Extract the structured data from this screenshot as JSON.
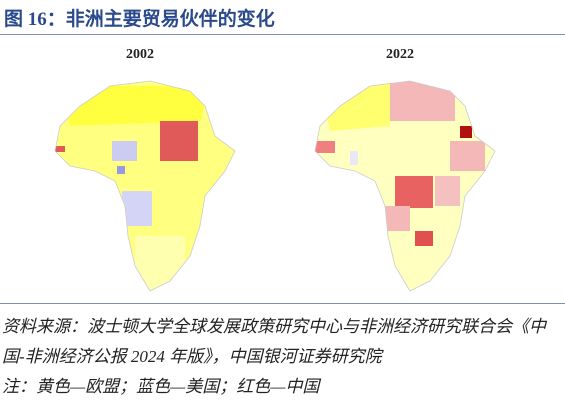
{
  "header": {
    "title": "图 16：非洲主要贸易伙伴的变化"
  },
  "maps": [
    {
      "year": "2002"
    },
    {
      "year": "2022"
    }
  ],
  "footer": {
    "source": "资料来源：波士顿大学全球发展政策研究中心与非洲经济研究联合会《中国-非洲经济公报 2024 年版》，中国银河证券研究院",
    "note": "注：黄色—欧盟；蓝色—美国；红色—中国"
  }
}
